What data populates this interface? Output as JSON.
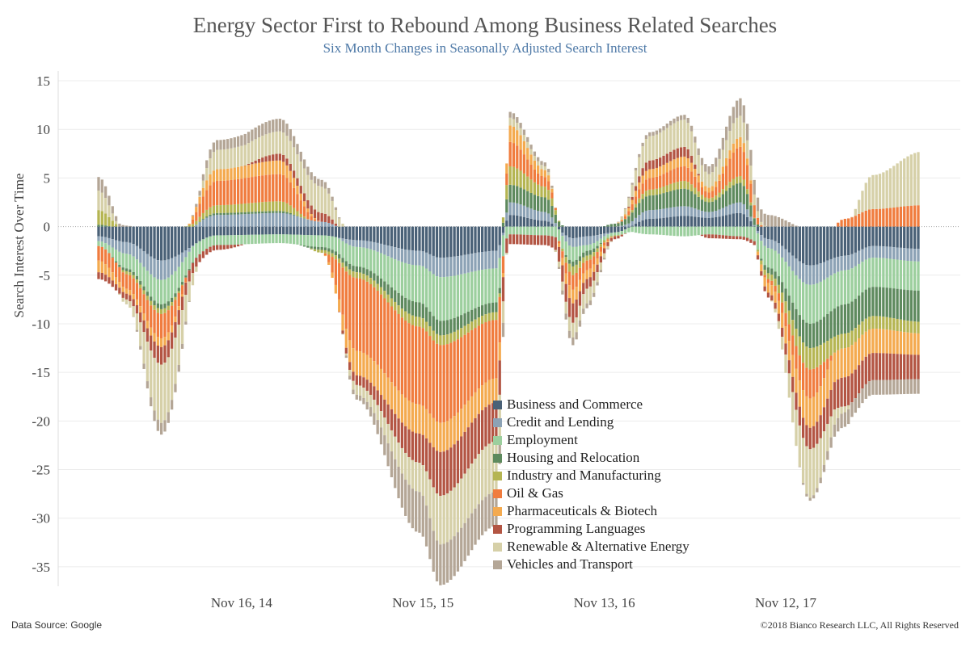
{
  "title": "Energy Sector First to Rebound Among Business Related Searches",
  "subtitle": "Six Month Changes in Seasonally Adjusted Search Interest",
  "footer": {
    "source": "Data Source: Google",
    "copyright": "©2018 Bianco Research LLC, All Rights Reserved"
  },
  "chart_data": {
    "type": "bar",
    "stacked": true,
    "ylabel": "Search Interest Over Time",
    "xlabel": "",
    "ylim": [
      -37,
      16
    ],
    "yticks": [
      15,
      10,
      5,
      0,
      -5,
      -10,
      -15,
      -20,
      -25,
      -30,
      -35
    ],
    "xtick_labels": [
      "Nov 16, 14",
      "Nov 15, 15",
      "Nov 13, 16",
      "Nov 12, 17"
    ],
    "xtick_weeks": [
      41,
      93,
      145,
      197
    ],
    "week_count": 236,
    "grid": "horizontal",
    "legend_position": "bottom-center",
    "anchors": [
      0,
      8,
      18,
      34,
      52,
      64,
      74,
      92,
      98,
      114,
      118,
      128,
      136,
      140,
      148,
      158,
      168,
      175,
      184,
      192,
      204,
      214,
      222,
      236
    ],
    "series": [
      {
        "name": "Business and Commerce",
        "color": "#4a6177",
        "values": [
          -1.0,
          -1.6,
          -3.5,
          -0.9,
          -0.8,
          -0.9,
          -1.4,
          -2.5,
          -3.2,
          -2.5,
          1.2,
          0.6,
          -1.2,
          -1.0,
          -0.6,
          0.8,
          1.1,
          0.9,
          1.4,
          -1.3,
          -4.0,
          -3.0,
          -2.0,
          -2.3
        ]
      },
      {
        "name": "Credit and Lending",
        "color": "#8ca2b5",
        "values": [
          -0.5,
          -1.2,
          -2.0,
          1.2,
          1.4,
          0.5,
          -0.7,
          -1.5,
          -2.0,
          -1.8,
          1.3,
          0.9,
          -0.9,
          -0.9,
          0.0,
          0.9,
          1.0,
          0.6,
          1.1,
          -0.9,
          -2.0,
          -1.5,
          -1.2,
          -1.3
        ]
      },
      {
        "name": "Employment",
        "color": "#9ccf9e",
        "values": [
          -0.5,
          -1.5,
          -2.5,
          -1.0,
          -0.9,
          -1.2,
          -2.0,
          -3.8,
          -4.5,
          -3.5,
          -0.8,
          -0.9,
          -1.5,
          -0.6,
          -0.3,
          -0.8,
          -1.0,
          -0.8,
          -1.0,
          -2.0,
          -4.0,
          -3.5,
          -3.0,
          -3.0
        ]
      },
      {
        "name": "Housing and Relocation",
        "color": "#5e8a5e",
        "values": [
          0.2,
          -0.3,
          -0.5,
          0.2,
          0.2,
          -0.3,
          -0.6,
          -1.5,
          -1.5,
          -1.0,
          1.8,
          1.5,
          -0.5,
          -0.5,
          0.3,
          1.5,
          1.8,
          1.0,
          2.0,
          -0.6,
          -2.5,
          -3.0,
          -3.0,
          -3.2
        ]
      },
      {
        "name": "Industry and Manufacturing",
        "color": "#b5b552",
        "values": [
          1.5,
          -0.3,
          -0.5,
          0.8,
          1.0,
          -0.3,
          -0.6,
          -1.0,
          -1.0,
          -0.8,
          1.9,
          1.1,
          -0.9,
          -0.5,
          -0.1,
          0.6,
          0.8,
          0.4,
          0.7,
          -0.6,
          -2.2,
          -1.5,
          -1.3,
          -1.2
        ]
      },
      {
        "name": "Oil & Gas",
        "color": "#f07c3e",
        "values": [
          -1.5,
          -1.5,
          -2.5,
          2.5,
          2.8,
          0.0,
          -7.5,
          -8.0,
          -8.0,
          -6.0,
          2.5,
          1.0,
          -1.5,
          -1.0,
          0.0,
          1.2,
          1.5,
          0.6,
          3.0,
          -0.4,
          -3.0,
          0.8,
          1.8,
          2.2
        ]
      },
      {
        "name": "Pharmaceuticals & Biotech",
        "color": "#f4aa4f",
        "values": [
          -1.2,
          -0.5,
          -0.9,
          1.2,
          1.4,
          0.0,
          -2.5,
          -3.0,
          -3.0,
          -2.5,
          1.7,
          0.7,
          -1.4,
          -0.9,
          0.0,
          0.9,
          1.0,
          0.5,
          1.0,
          -1.0,
          -3.0,
          -3.0,
          -2.5,
          -2.2
        ]
      },
      {
        "name": "Programming Languages",
        "color": "#b35543",
        "values": [
          -0.7,
          -0.6,
          -1.8,
          -0.5,
          0.7,
          0.9,
          -1.0,
          -3.0,
          -4.5,
          -4.0,
          -1.0,
          -1.0,
          -2.0,
          -1.0,
          -0.3,
          0.9,
          1.0,
          -0.4,
          -0.3,
          -0.5,
          -2.2,
          -3.0,
          -2.8,
          -2.5
        ]
      },
      {
        "name": "Renewable & Alternative Energy",
        "color": "#d6d0a8",
        "values": [
          2.0,
          -0.5,
          -6.0,
          2.0,
          2.3,
          2.7,
          -1.0,
          -3.0,
          -5.0,
          -5.2,
          0.8,
          0.4,
          -1.5,
          -1.5,
          0.0,
          2.5,
          2.8,
          1.4,
          2.2,
          0.0,
          -5.0,
          -0.6,
          3.5,
          5.5
        ]
      },
      {
        "name": "Vehicles and Transport",
        "color": "#b4a696",
        "values": [
          1.4,
          0.1,
          -1.2,
          1.0,
          1.3,
          0.7,
          -0.5,
          -4.2,
          -4.2,
          -3.5,
          0.6,
          0.4,
          -0.8,
          -0.5,
          0.0,
          0.4,
          0.5,
          0.8,
          1.8,
          1.2,
          -0.3,
          -1.5,
          -1.5,
          -1.5
        ]
      }
    ]
  }
}
